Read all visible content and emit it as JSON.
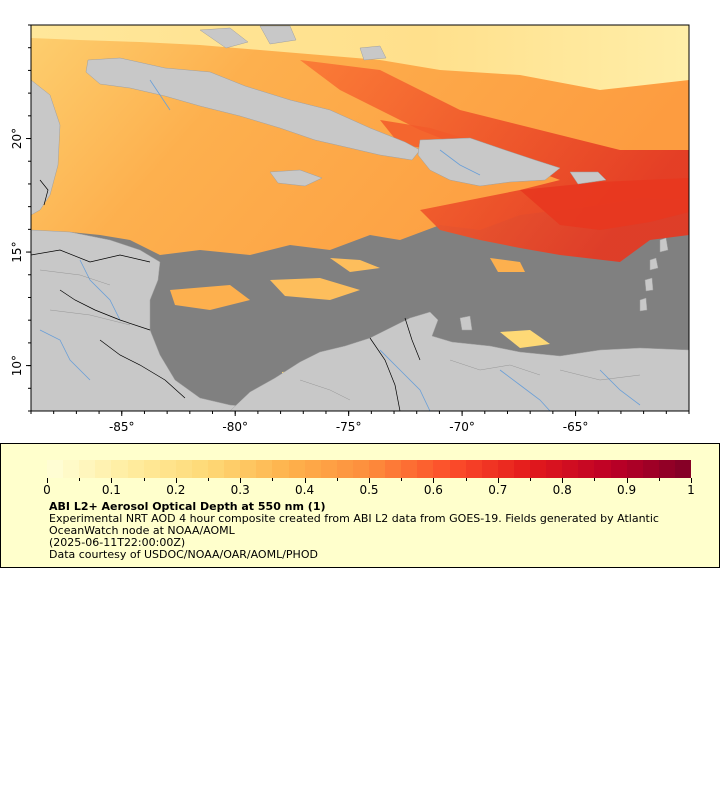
{
  "map": {
    "x_ticks": [
      "-85°",
      "-80°",
      "-75°",
      "-70°",
      "-65°"
    ],
    "y_ticks": [
      "20°",
      "15°",
      "10°"
    ],
    "x_tick_values": [
      -85,
      -80,
      -75,
      -70,
      -65
    ],
    "y_tick_values": [
      20,
      15,
      10
    ],
    "lon_range": [
      -89,
      -60
    ],
    "lat_range": [
      8,
      25
    ],
    "colors": {
      "land": "#c8c8c8",
      "no_data": "#808080",
      "rivers": "#6a9fd8",
      "borders": "#000000"
    }
  },
  "legend": {
    "colorbar_labels": [
      "0",
      "0.1",
      "0.2",
      "0.3",
      "0.4",
      "0.5",
      "0.6",
      "0.7",
      "0.8",
      "0.9",
      "1"
    ],
    "colorbar_values": [
      0,
      0.1,
      0.2,
      0.3,
      0.4,
      0.5,
      0.6,
      0.7,
      0.8,
      0.9,
      1
    ],
    "colorbar_stops": [
      "#ffffd9",
      "#ffeda0",
      "#fed976",
      "#feb24c",
      "#fd8d3c",
      "#fc4e2a",
      "#e31a1c",
      "#bd0026",
      "#800026"
    ],
    "title": "ABI L2+ Aerosol Optical Depth at 550 nm (1)",
    "description": "Experimental NRT AOD 4 hour composite created from ABI L2 data from GOES-19. Fields generated by Atlantic OceanWatch node at NOAA/AOML",
    "date": "(2025-06-11T22:00:00Z)",
    "credit": "Data courtesy of USDOC/NOAA/OAR/AOML/PHOD"
  }
}
